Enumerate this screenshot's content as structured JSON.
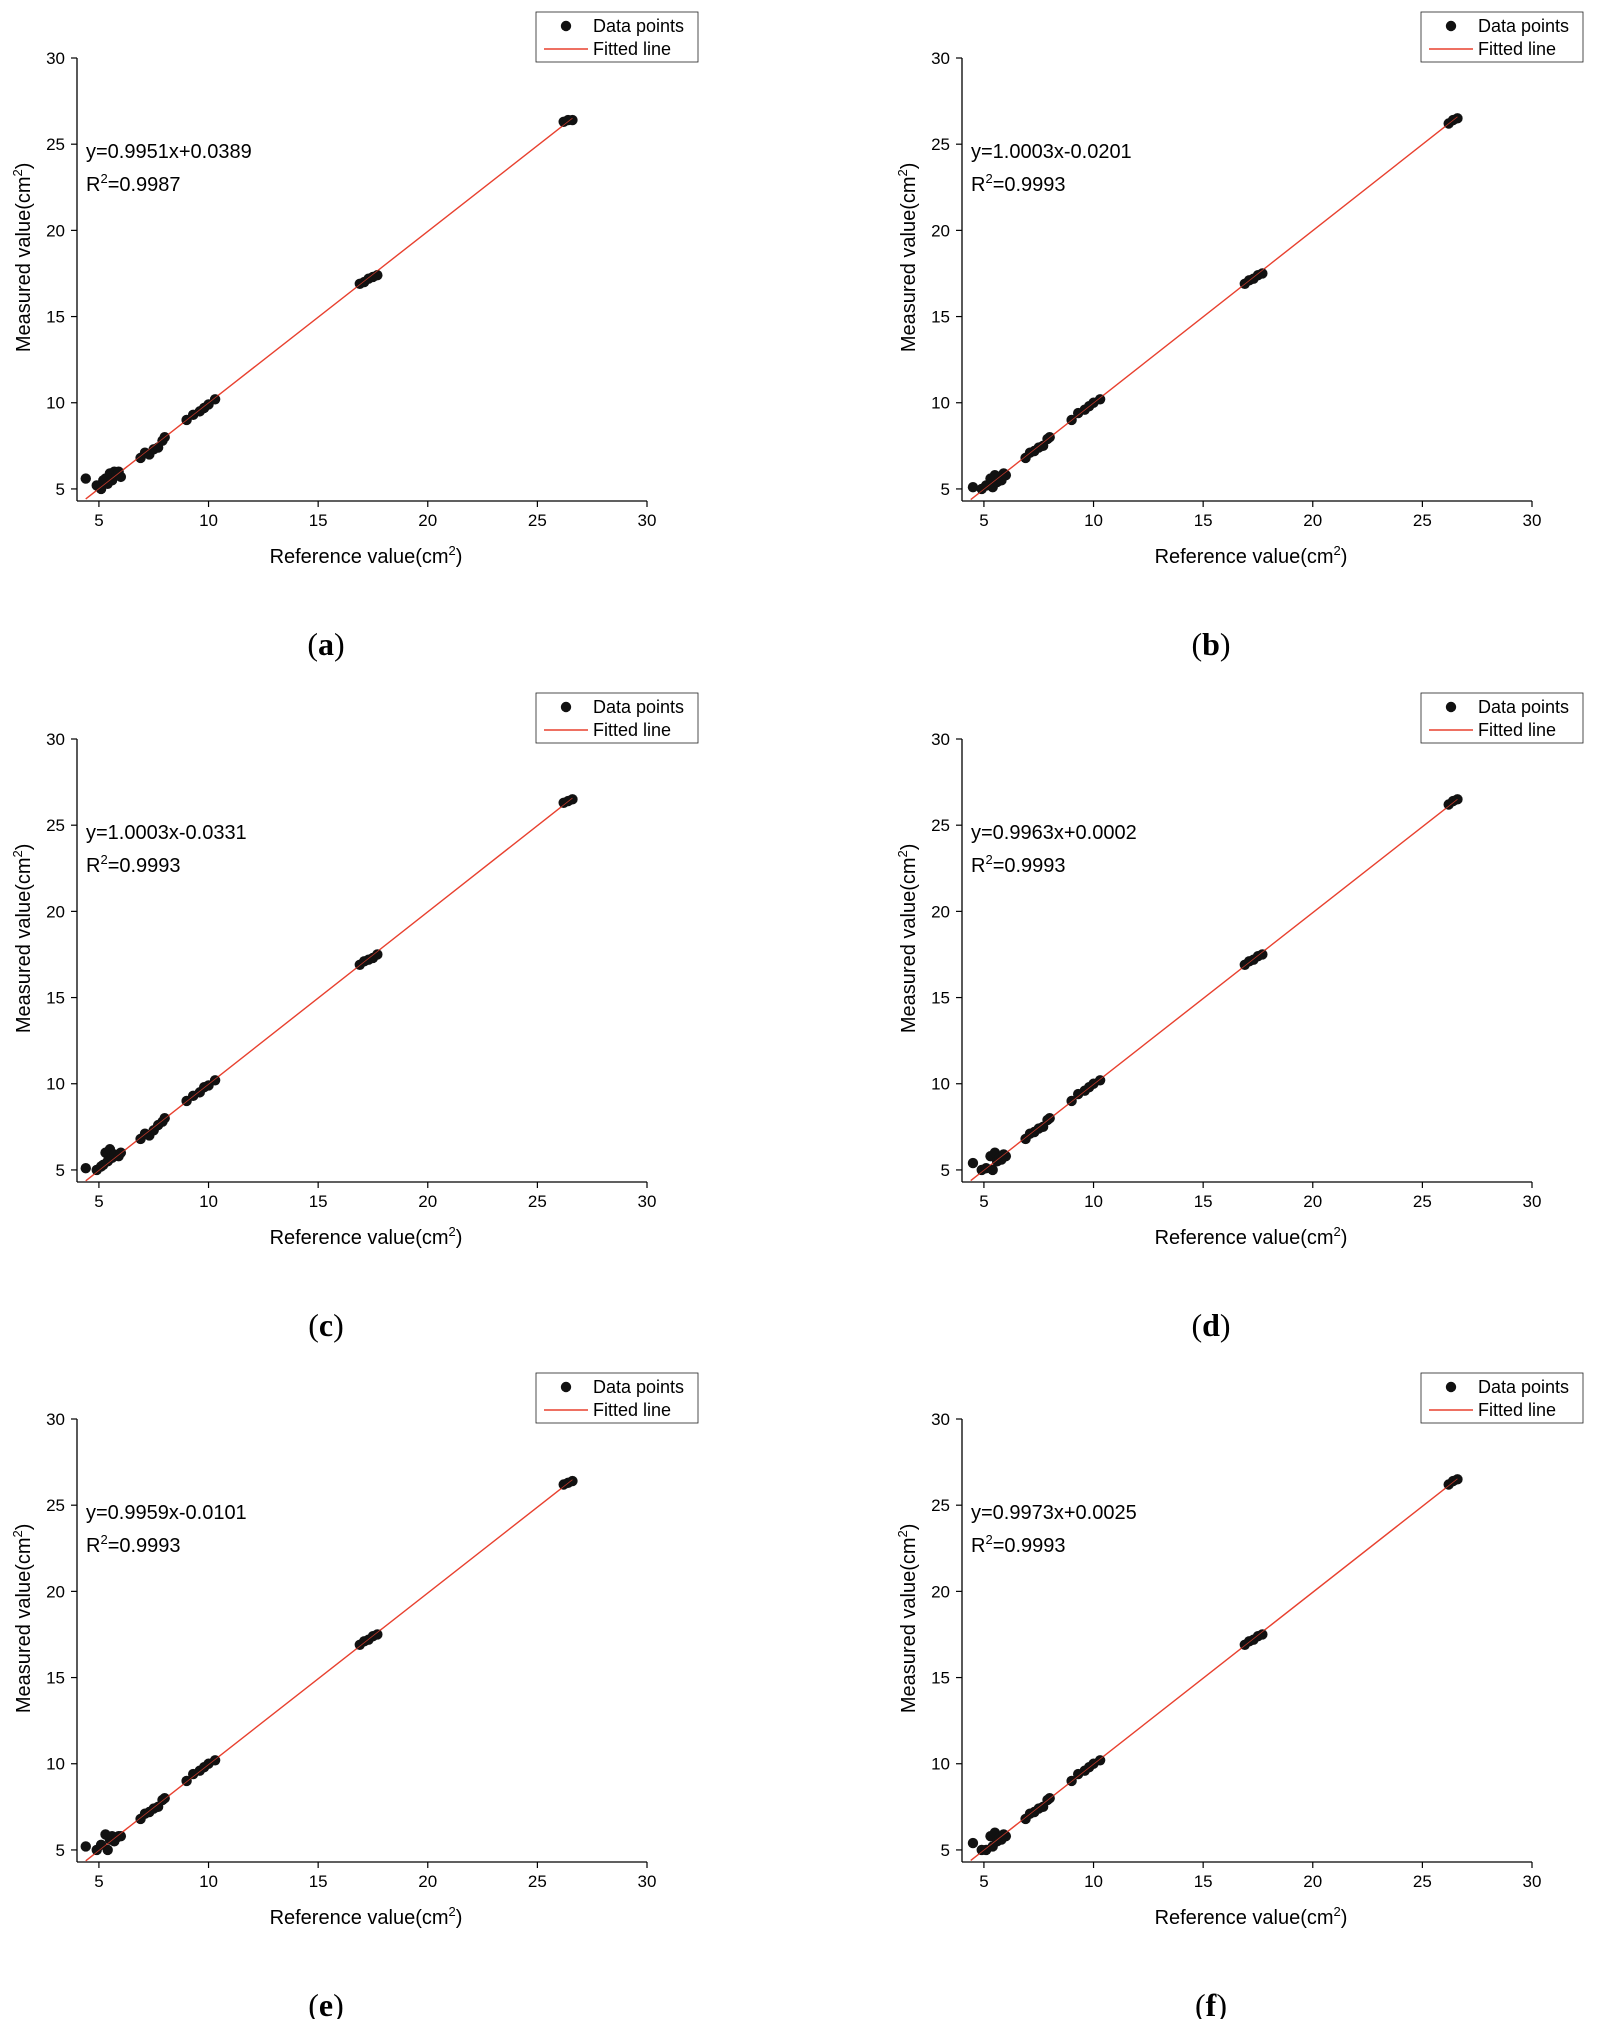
{
  "colors": {
    "points": "#111111",
    "fit_line": "#e8412f",
    "axes": "#000000"
  },
  "legend": {
    "points_label": "Data points",
    "line_label": "Fitted line"
  },
  "chart_data": [
    {
      "panel": "a",
      "type": "scatter",
      "xlabel": "Reference value(cm",
      "ylabel": "Measured value(cm",
      "unit_superscript": "2",
      "xlim": [
        4,
        30
      ],
      "ylim": [
        4.3,
        30
      ],
      "xticks": [
        5,
        10,
        15,
        20,
        25,
        30
      ],
      "yticks": [
        5,
        10,
        15,
        20,
        25,
        30
      ],
      "equation": "y=0.9951x+0.0389",
      "r2_prefix": "R",
      "r2_superscript": "2",
      "r2_value": "=0.9987",
      "fit": {
        "slope": 0.9951,
        "intercept": 0.0389,
        "x_range": [
          4.4,
          26.6
        ]
      },
      "x": [
        4.4,
        4.9,
        5.1,
        5.2,
        5.3,
        5.4,
        5.5,
        5.6,
        5.7,
        5.8,
        5.9,
        6.0,
        6.9,
        7.1,
        7.3,
        7.5,
        7.7,
        7.9,
        8.0,
        9.0,
        9.3,
        9.6,
        9.8,
        10.0,
        10.3,
        16.9,
        17.1,
        17.3,
        17.5,
        17.7,
        26.2,
        26.4,
        26.6
      ],
      "y": [
        5.6,
        5.2,
        5.0,
        5.5,
        5.6,
        5.3,
        5.9,
        5.5,
        6.0,
        5.8,
        6.0,
        5.7,
        6.8,
        7.1,
        7.0,
        7.3,
        7.4,
        7.8,
        8.0,
        9.0,
        9.3,
        9.5,
        9.7,
        9.9,
        10.2,
        16.9,
        17.0,
        17.2,
        17.3,
        17.4,
        26.3,
        26.4,
        26.4
      ],
      "legend_position": "top-right"
    },
    {
      "panel": "b",
      "type": "scatter",
      "xlabel": "Reference value(cm",
      "ylabel": "Measured value(cm",
      "unit_superscript": "2",
      "xlim": [
        4,
        30
      ],
      "ylim": [
        4.3,
        30
      ],
      "xticks": [
        5,
        10,
        15,
        20,
        25,
        30
      ],
      "yticks": [
        5,
        10,
        15,
        20,
        25,
        30
      ],
      "equation": "y=1.0003x-0.0201",
      "r2_prefix": "R",
      "r2_superscript": "2",
      "r2_value": "=0.9993",
      "fit": {
        "slope": 1.0003,
        "intercept": -0.0201,
        "x_range": [
          4.4,
          26.6
        ]
      },
      "x": [
        4.5,
        4.9,
        5.1,
        5.3,
        5.4,
        5.5,
        5.6,
        5.7,
        5.8,
        5.9,
        6.0,
        6.9,
        7.1,
        7.3,
        7.5,
        7.7,
        7.9,
        8.0,
        9.0,
        9.3,
        9.6,
        9.8,
        10.0,
        10.3,
        16.9,
        17.1,
        17.3,
        17.5,
        17.7,
        26.2,
        26.4,
        26.6
      ],
      "y": [
        5.1,
        5.0,
        5.2,
        5.6,
        5.1,
        5.8,
        5.4,
        5.7,
        5.5,
        5.9,
        5.8,
        6.8,
        7.1,
        7.2,
        7.4,
        7.5,
        7.9,
        8.0,
        9.0,
        9.4,
        9.6,
        9.8,
        10.0,
        10.2,
        16.9,
        17.1,
        17.2,
        17.4,
        17.5,
        26.2,
        26.4,
        26.5
      ],
      "legend_position": "top-right"
    },
    {
      "panel": "c",
      "type": "scatter",
      "xlabel": "Reference value(cm",
      "ylabel": "Measured value(cm",
      "unit_superscript": "2",
      "xlim": [
        4,
        30
      ],
      "ylim": [
        4.3,
        30
      ],
      "xticks": [
        5,
        10,
        15,
        20,
        25,
        30
      ],
      "yticks": [
        5,
        10,
        15,
        20,
        25,
        30
      ],
      "equation": "y=1.0003x-0.0331",
      "r2_prefix": "R",
      "r2_superscript": "2",
      "r2_value": "=0.9993",
      "fit": {
        "slope": 1.0003,
        "intercept": -0.0331,
        "x_range": [
          4.4,
          26.6
        ]
      },
      "x": [
        4.4,
        4.9,
        5.1,
        5.2,
        5.3,
        5.4,
        5.5,
        5.6,
        5.7,
        5.9,
        6.0,
        6.9,
        7.1,
        7.3,
        7.5,
        7.7,
        7.9,
        8.0,
        9.0,
        9.3,
        9.6,
        9.8,
        10.0,
        10.3,
        16.9,
        17.1,
        17.3,
        17.5,
        17.7,
        26.2,
        26.4,
        26.6
      ],
      "y": [
        5.1,
        5.0,
        5.2,
        5.3,
        6.0,
        5.5,
        6.2,
        5.7,
        5.9,
        5.8,
        6.0,
        6.8,
        7.1,
        7.0,
        7.3,
        7.6,
        7.8,
        8.0,
        9.0,
        9.3,
        9.5,
        9.8,
        9.9,
        10.2,
        16.9,
        17.1,
        17.2,
        17.3,
        17.5,
        26.3,
        26.4,
        26.5
      ],
      "legend_position": "top-right"
    },
    {
      "panel": "d",
      "type": "scatter",
      "xlabel": "Reference value(cm",
      "ylabel": "Measured value(cm",
      "unit_superscript": "2",
      "xlim": [
        4,
        30
      ],
      "ylim": [
        4.3,
        30
      ],
      "xticks": [
        5,
        10,
        15,
        20,
        25,
        30
      ],
      "yticks": [
        5,
        10,
        15,
        20,
        25,
        30
      ],
      "equation": "y=0.9963x+0.0002",
      "r2_prefix": "R",
      "r2_superscript": "2",
      "r2_value": "=0.9993",
      "fit": {
        "slope": 0.9963,
        "intercept": 0.0002,
        "x_range": [
          4.4,
          26.6
        ]
      },
      "x": [
        4.5,
        4.9,
        5.1,
        5.3,
        5.4,
        5.5,
        5.6,
        5.7,
        5.8,
        5.9,
        6.0,
        6.9,
        7.1,
        7.3,
        7.5,
        7.7,
        7.9,
        8.0,
        9.0,
        9.3,
        9.6,
        9.8,
        10.0,
        10.3,
        16.9,
        17.1,
        17.3,
        17.5,
        17.7,
        26.2,
        26.4,
        26.6
      ],
      "y": [
        5.4,
        5.0,
        5.1,
        5.8,
        5.0,
        6.0,
        5.5,
        5.7,
        5.6,
        5.9,
        5.8,
        6.8,
        7.1,
        7.2,
        7.4,
        7.5,
        7.9,
        8.0,
        9.0,
        9.4,
        9.6,
        9.8,
        10.0,
        10.2,
        16.9,
        17.1,
        17.2,
        17.4,
        17.5,
        26.2,
        26.4,
        26.5
      ],
      "legend_position": "top-right"
    },
    {
      "panel": "e",
      "type": "scatter",
      "xlabel": "Reference value(cm",
      "ylabel": "Measured value(cm",
      "unit_superscript": "2",
      "xlim": [
        4,
        30
      ],
      "ylim": [
        4.3,
        30
      ],
      "xticks": [
        5,
        10,
        15,
        20,
        25,
        30
      ],
      "yticks": [
        5,
        10,
        15,
        20,
        25,
        30
      ],
      "equation": "y=0.9959x-0.0101",
      "r2_prefix": "R",
      "r2_superscript": "2",
      "r2_value": "=0.9993",
      "fit": {
        "slope": 0.9959,
        "intercept": -0.0101,
        "x_range": [
          4.4,
          26.6
        ]
      },
      "x": [
        4.4,
        4.9,
        5.1,
        5.3,
        5.4,
        5.5,
        5.6,
        5.7,
        5.8,
        5.9,
        6.0,
        6.9,
        7.1,
        7.3,
        7.5,
        7.7,
        7.9,
        8.0,
        9.0,
        9.3,
        9.6,
        9.8,
        10.0,
        10.3,
        16.9,
        17.1,
        17.3,
        17.5,
        17.7,
        26.2,
        26.4,
        26.6
      ],
      "y": [
        5.2,
        5.0,
        5.3,
        5.9,
        5.0,
        5.6,
        5.8,
        5.5,
        5.7,
        5.8,
        5.8,
        6.8,
        7.1,
        7.2,
        7.4,
        7.5,
        7.9,
        8.0,
        9.0,
        9.4,
        9.6,
        9.8,
        10.0,
        10.2,
        16.9,
        17.1,
        17.2,
        17.4,
        17.5,
        26.2,
        26.3,
        26.4
      ],
      "legend_position": "top-right"
    },
    {
      "panel": "f",
      "type": "scatter",
      "xlabel": "Reference value(cm",
      "ylabel": "Measured value(cm",
      "unit_superscript": "2",
      "xlim": [
        4,
        30
      ],
      "ylim": [
        4.3,
        30
      ],
      "xticks": [
        5,
        10,
        15,
        20,
        25,
        30
      ],
      "yticks": [
        5,
        10,
        15,
        20,
        25,
        30
      ],
      "equation": "y=0.9973x+0.0025",
      "r2_prefix": "R",
      "r2_superscript": "2",
      "r2_value": "=0.9993",
      "fit": {
        "slope": 0.9973,
        "intercept": 0.0025,
        "x_range": [
          4.4,
          26.6
        ]
      },
      "x": [
        4.5,
        4.9,
        5.1,
        5.3,
        5.4,
        5.5,
        5.6,
        5.7,
        5.8,
        5.9,
        6.0,
        6.9,
        7.1,
        7.3,
        7.5,
        7.7,
        7.9,
        8.0,
        9.0,
        9.3,
        9.6,
        9.8,
        10.0,
        10.3,
        16.9,
        17.1,
        17.3,
        17.5,
        17.7,
        26.2,
        26.4,
        26.6
      ],
      "y": [
        5.4,
        5.0,
        5.0,
        5.8,
        5.2,
        6.0,
        5.5,
        5.7,
        5.6,
        5.9,
        5.8,
        6.8,
        7.1,
        7.2,
        7.4,
        7.5,
        7.9,
        8.0,
        9.0,
        9.4,
        9.6,
        9.8,
        10.0,
        10.2,
        16.9,
        17.1,
        17.2,
        17.4,
        17.5,
        26.2,
        26.4,
        26.5
      ],
      "legend_position": "top-right"
    }
  ],
  "panel_labels": [
    {
      "open": "(",
      "letter": "a",
      "close": ")"
    },
    {
      "open": "(",
      "letter": "b",
      "close": ")"
    },
    {
      "open": "(",
      "letter": "c",
      "close": ")"
    },
    {
      "open": "(",
      "letter": "d",
      "close": ")"
    },
    {
      "open": "(",
      "letter": "e",
      "close": ")"
    },
    {
      "open": "(",
      "letter": "f",
      "close": ")"
    }
  ]
}
